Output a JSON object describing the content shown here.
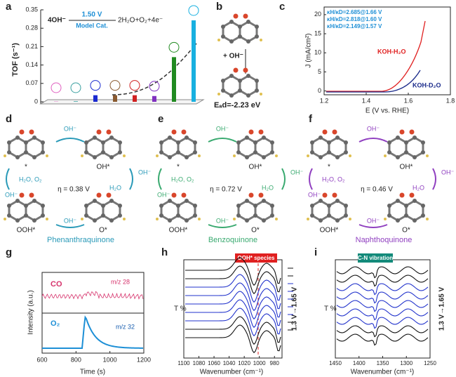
{
  "panel_a": {
    "label": "a",
    "ylabel": "TOF (s⁻¹)",
    "ylim": [
      0,
      0.35
    ],
    "yticks": [
      0,
      0.07,
      0.14,
      0.21,
      0.28,
      0.35
    ],
    "eq_left": "4OH⁻",
    "eq_volt": "1.50 V",
    "eq_cat": "Model Cat.",
    "eq_right": "2H₂O+O₂+4e⁻",
    "tof": [
      0.001,
      0.002,
      0.025,
      0.025,
      0.025,
      0.022,
      0.17,
      0.31
    ],
    "colors": [
      "#e060c0",
      "#3aa0a0",
      "#1a2ad0",
      "#8a5a30",
      "#d02020",
      "#8030c0",
      "#208a20",
      "#18b0e0"
    ]
  },
  "panel_b": {
    "label": "b",
    "reagent": "+ OH⁻",
    "energy": "Eₐd=-2.23 eV"
  },
  "panel_c": {
    "label": "c",
    "kie": [
      "κH/κD=2.685@1.66 V",
      "κH/κD=2.818@1.60 V",
      "κH/κD=2.149@1.57 V"
    ],
    "ylabel": "J (mA/cm²)",
    "xlabel": "E (V vs. RHE)",
    "xlim": [
      1.2,
      1.8
    ],
    "xticks": [
      1.2,
      1.4,
      1.6,
      1.8
    ],
    "ylim": [
      -1,
      22
    ],
    "yticks": [
      0,
      5,
      10,
      15,
      20
    ],
    "series": [
      "KOH-H₂O",
      "KOH-D₂O"
    ]
  },
  "cycles": [
    {
      "label": "d",
      "color": "#2a9ab8",
      "species": [
        "*",
        "OH*",
        "O*",
        "OOH*"
      ],
      "step1": "OH⁻",
      "step2": "OH⁻",
      "step2b": "H₂O",
      "step3": "OH⁻",
      "step4": "OH⁻",
      "step4b": "H₂O, O₂",
      "eta": "η = 0.38 V",
      "name": "Phenanthraquinone"
    },
    {
      "label": "e",
      "color": "#3aaa70",
      "species": [
        "*",
        "OH*",
        "O*",
        "OOH*"
      ],
      "step1": "OH⁻",
      "step2": "OH⁻",
      "step2b": "H₂O",
      "step3": "OH⁻",
      "step4": "OH⁻",
      "step4b": "H₂O, O₂",
      "eta": "η = 0.72 V",
      "name": "Benzoquinone"
    },
    {
      "label": "f",
      "color": "#9040c0",
      "species": [
        "*",
        "OH*",
        "O*",
        "OOH*"
      ],
      "step1": "OH⁻",
      "step2": "OH⁻",
      "step2b": "H₂O",
      "step3": "OH⁻",
      "step4": "OH⁻",
      "step4b": "H₂O, O₂",
      "eta": "η = 0.46 V",
      "name": "Naphthoquinone"
    }
  ],
  "panel_g": {
    "label": "g",
    "co": "CO",
    "co_mz": "m/z 28",
    "o2": "O₂",
    "o2_mz": "m/z 32",
    "ylabel": "Intensity (a.u.)",
    "xlabel": "Time (s)",
    "xlim": [
      600,
      1200
    ],
    "xticks": [
      600,
      800,
      1000,
      1200
    ]
  },
  "panel_h": {
    "label": "h",
    "annotation": "OOH* species",
    "ylabel": "T %",
    "xlabel": "Wavenumber (cm⁻¹)",
    "range": "1.3 V→1.65 V",
    "xlim": [
      1100,
      970
    ],
    "xticks": [
      1100,
      1080,
      1060,
      1040,
      1020,
      1000,
      980
    ]
  },
  "panel_i": {
    "label": "i",
    "annotation": "C-N vibration",
    "ylabel": "T %",
    "xlabel": "Wavenumber (cm⁻¹)",
    "range": "1.3 V→1.65 V",
    "xlim": [
      1450,
      1250
    ],
    "xticks": [
      1450,
      1400,
      1350,
      1300,
      1250
    ]
  }
}
